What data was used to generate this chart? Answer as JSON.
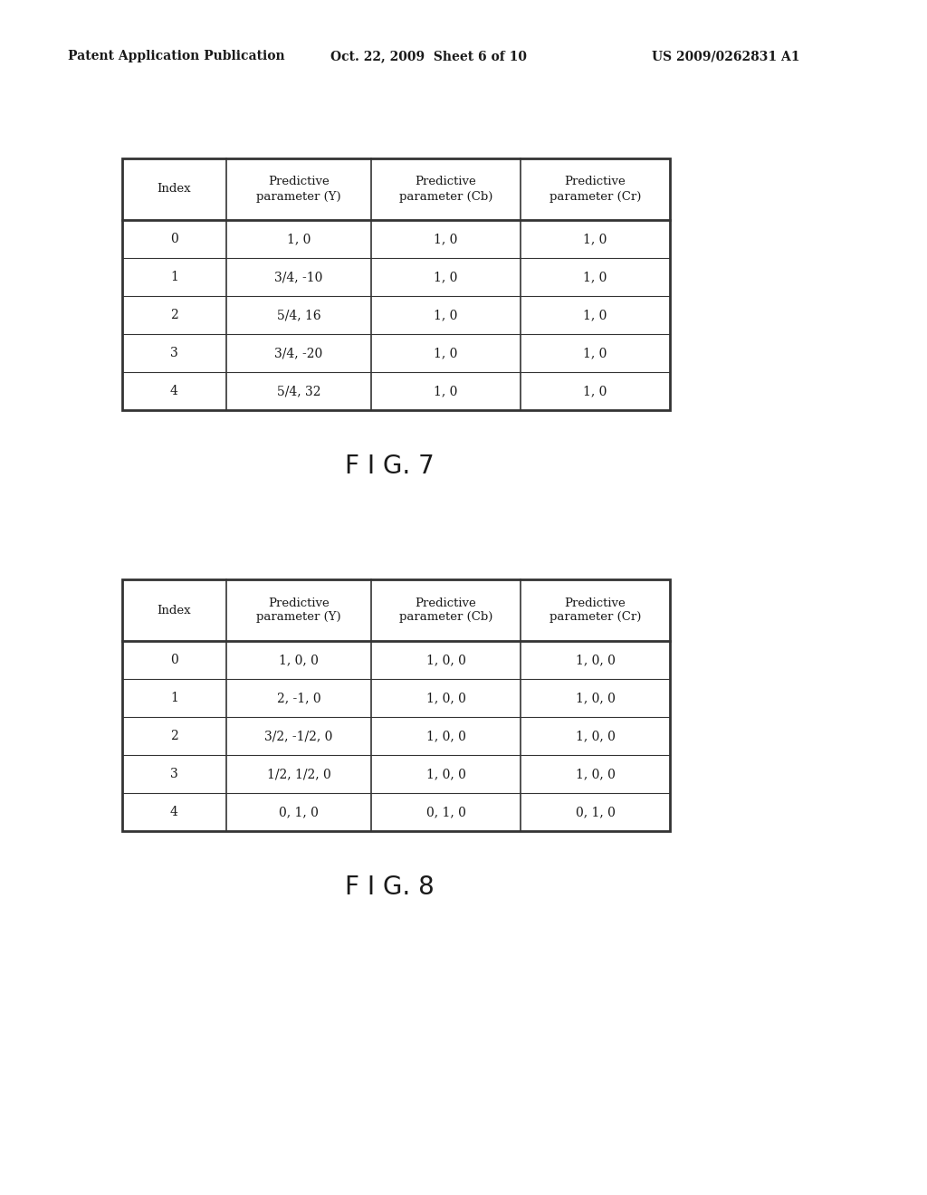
{
  "header_text": "Patent Application Publication",
  "date_text": "Oct. 22, 2009  Sheet 6 of 10",
  "patent_text": "US 2009/0262831 A1",
  "fig7_label": "F I G. 7",
  "fig8_label": "F I G. 8",
  "table1_headers": [
    "Index",
    "Predictive\nparameter (Y)",
    "Predictive\nparameter (Cb)",
    "Predictive\nparameter (Cr)"
  ],
  "table1_data": [
    [
      "0",
      "1, 0",
      "1, 0",
      "1, 0"
    ],
    [
      "1",
      "3/4, -10",
      "1, 0",
      "1, 0"
    ],
    [
      "2",
      "5/4, 16",
      "1, 0",
      "1, 0"
    ],
    [
      "3",
      "3/4, -20",
      "1, 0",
      "1, 0"
    ],
    [
      "4",
      "5/4, 32",
      "1, 0",
      "1, 0"
    ]
  ],
  "table2_headers": [
    "Index",
    "Predictive\nparameter (Y)",
    "Predictive\nparameter (Cb)",
    "Predictive\nparameter (Cr)"
  ],
  "table2_data": [
    [
      "0",
      "1, 0, 0",
      "1, 0, 0",
      "1, 0, 0"
    ],
    [
      "1",
      "2, -1, 0",
      "1, 0, 0",
      "1, 0, 0"
    ],
    [
      "2",
      "3/2, -1/2, 0",
      "1, 0, 0",
      "1, 0, 0"
    ],
    [
      "3",
      "1/2, 1/2, 0",
      "1, 0, 0",
      "1, 0, 0"
    ],
    [
      "4",
      "0, 1, 0",
      "0, 1, 0",
      "0, 1, 0"
    ]
  ],
  "bg_color": "#ffffff",
  "text_color": "#1a1a1a",
  "table_line_color": "#333333",
  "header_fontsize": 9.5,
  "cell_fontsize": 10,
  "fig_label_fontsize": 20
}
